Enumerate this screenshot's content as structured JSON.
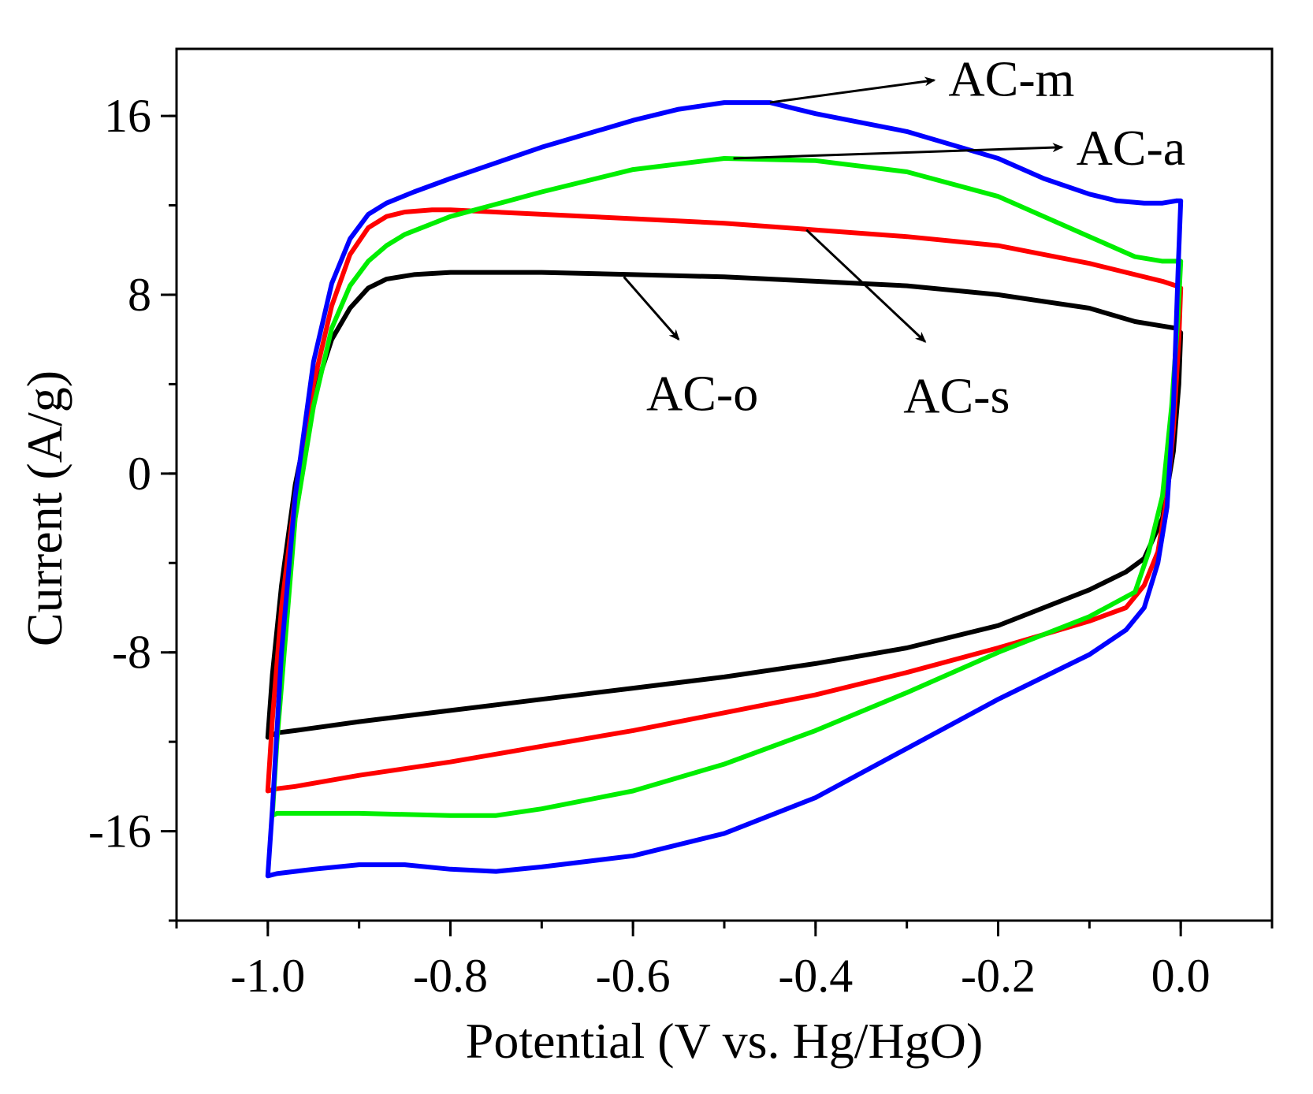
{
  "chart_data": {
    "type": "line",
    "title": "",
    "xlabel": "Potential (V vs. Hg/HgO)",
    "ylabel": "Current (A/g)",
    "xlim": [
      -1.1,
      0.1
    ],
    "ylim": [
      -20,
      19
    ],
    "xticks": [
      -1.0,
      -0.8,
      -0.6,
      -0.4,
      -0.2,
      0.0
    ],
    "xtick_labels": [
      "-1.0",
      "-0.8",
      "-0.6",
      "-0.4",
      "-0.2",
      "0.0"
    ],
    "yticks": [
      -16,
      -8,
      0,
      8,
      16
    ],
    "ytick_labels": [
      "-16",
      "-8",
      "0",
      "8",
      "16"
    ],
    "x_minor_step": 0.1,
    "y_minor_step": 4,
    "grid": false,
    "legend": "none",
    "series": [
      {
        "name": "AC-o",
        "color": "#000000",
        "x": [
          -1.0,
          -0.995,
          -0.985,
          -0.97,
          -0.95,
          -0.93,
          -0.91,
          -0.89,
          -0.87,
          -0.84,
          -0.8,
          -0.7,
          -0.6,
          -0.5,
          -0.4,
          -0.3,
          -0.2,
          -0.1,
          -0.05,
          -0.02,
          -0.005,
          0.0,
          -0.002,
          -0.008,
          -0.02,
          -0.04,
          -0.06,
          -0.1,
          -0.2,
          -0.3,
          -0.4,
          -0.5,
          -0.6,
          -0.7,
          -0.8,
          -0.9,
          -0.97,
          -0.99,
          -0.995,
          -1.0
        ],
        "y": [
          -11.8,
          -9.0,
          -5.0,
          -0.5,
          3.5,
          6.0,
          7.4,
          8.3,
          8.7,
          8.9,
          9.0,
          9.0,
          8.9,
          8.8,
          8.6,
          8.4,
          8.0,
          7.4,
          6.8,
          6.6,
          6.5,
          6.3,
          4.0,
          1.0,
          -2.0,
          -3.8,
          -4.4,
          -5.2,
          -6.8,
          -7.8,
          -8.5,
          -9.1,
          -9.6,
          -10.1,
          -10.6,
          -11.1,
          -11.5,
          -11.6,
          -11.7,
          -11.8
        ]
      },
      {
        "name": "AC-s",
        "color": "#ff0000",
        "x": [
          -1.0,
          -0.995,
          -0.985,
          -0.97,
          -0.95,
          -0.93,
          -0.91,
          -0.89,
          -0.87,
          -0.85,
          -0.82,
          -0.8,
          -0.7,
          -0.6,
          -0.5,
          -0.4,
          -0.3,
          -0.2,
          -0.1,
          -0.02,
          -0.005,
          0.0,
          -0.002,
          -0.008,
          -0.015,
          -0.025,
          -0.04,
          -0.06,
          -0.1,
          -0.2,
          -0.3,
          -0.4,
          -0.5,
          -0.6,
          -0.7,
          -0.8,
          -0.9,
          -0.97,
          -0.99,
          -1.0
        ],
        "y": [
          -14.2,
          -11.0,
          -6.0,
          -1.0,
          4.0,
          7.5,
          9.8,
          11.0,
          11.5,
          11.7,
          11.8,
          11.8,
          11.6,
          11.4,
          11.2,
          10.9,
          10.6,
          10.2,
          9.4,
          8.6,
          8.4,
          8.3,
          6.0,
          2.0,
          -1.0,
          -3.5,
          -5.0,
          -6.0,
          -6.6,
          -7.8,
          -8.9,
          -9.9,
          -10.7,
          -11.5,
          -12.2,
          -12.9,
          -13.5,
          -14.0,
          -14.1,
          -14.2
        ]
      },
      {
        "name": "AC-a",
        "color": "#00ee00",
        "x": [
          -0.995,
          -0.99,
          -0.98,
          -0.97,
          -0.95,
          -0.93,
          -0.91,
          -0.89,
          -0.87,
          -0.85,
          -0.8,
          -0.7,
          -0.6,
          -0.5,
          -0.4,
          -0.3,
          -0.2,
          -0.1,
          -0.05,
          -0.02,
          -0.005,
          0.0,
          -0.003,
          -0.01,
          -0.02,
          -0.035,
          -0.05,
          -0.1,
          -0.2,
          -0.3,
          -0.4,
          -0.5,
          -0.6,
          -0.7,
          -0.75,
          -0.8,
          -0.9,
          -0.97,
          -0.99,
          -0.995
        ],
        "y": [
          -15.3,
          -12.0,
          -7.0,
          -2.0,
          3.0,
          6.5,
          8.4,
          9.5,
          10.2,
          10.7,
          11.5,
          12.6,
          13.6,
          14.1,
          14.0,
          13.5,
          12.4,
          10.6,
          9.7,
          9.5,
          9.5,
          9.5,
          7.0,
          3.0,
          -1.0,
          -3.5,
          -5.3,
          -6.4,
          -8.0,
          -9.8,
          -11.5,
          -13.0,
          -14.2,
          -15.0,
          -15.3,
          -15.3,
          -15.2,
          -15.2,
          -15.2,
          -15.3
        ]
      },
      {
        "name": "AC-m",
        "color": "#0000ff",
        "x": [
          -1.0,
          -0.995,
          -0.985,
          -0.97,
          -0.95,
          -0.93,
          -0.91,
          -0.89,
          -0.87,
          -0.84,
          -0.8,
          -0.7,
          -0.6,
          -0.55,
          -0.5,
          -0.45,
          -0.4,
          -0.3,
          -0.2,
          -0.15,
          -0.1,
          -0.07,
          -0.04,
          -0.02,
          -0.005,
          0.0,
          -0.003,
          -0.008,
          -0.015,
          -0.025,
          -0.04,
          -0.06,
          -0.1,
          -0.2,
          -0.3,
          -0.4,
          -0.5,
          -0.6,
          -0.7,
          -0.75,
          -0.8,
          -0.85,
          -0.9,
          -0.95,
          -0.99,
          -1.0
        ],
        "y": [
          -18.0,
          -15.0,
          -8.0,
          -1.0,
          5.0,
          8.5,
          10.5,
          11.6,
          12.1,
          12.6,
          13.2,
          14.6,
          15.8,
          16.3,
          16.6,
          16.6,
          16.1,
          15.3,
          14.1,
          13.2,
          12.5,
          12.2,
          12.1,
          12.1,
          12.2,
          12.2,
          9.0,
          3.0,
          -1.5,
          -4.0,
          -6.0,
          -7.0,
          -8.1,
          -10.1,
          -12.3,
          -14.5,
          -16.1,
          -17.1,
          -17.6,
          -17.8,
          -17.7,
          -17.5,
          -17.5,
          -17.7,
          -17.9,
          -18.0
        ]
      }
    ],
    "annotations": [
      {
        "text": "AC-m",
        "target": [
          -0.45,
          16.6
        ],
        "head": [
          -0.27,
          17.6
        ]
      },
      {
        "text": "AC-a",
        "target": [
          -0.49,
          14.1
        ],
        "head": [
          -0.13,
          14.6
        ]
      },
      {
        "text": "AC-o",
        "target": [
          -0.61,
          8.8
        ],
        "head": [
          -0.55,
          6.0
        ]
      },
      {
        "text": "AC-s",
        "target": [
          -0.41,
          10.9
        ],
        "head": [
          -0.28,
          5.9
        ]
      }
    ]
  }
}
